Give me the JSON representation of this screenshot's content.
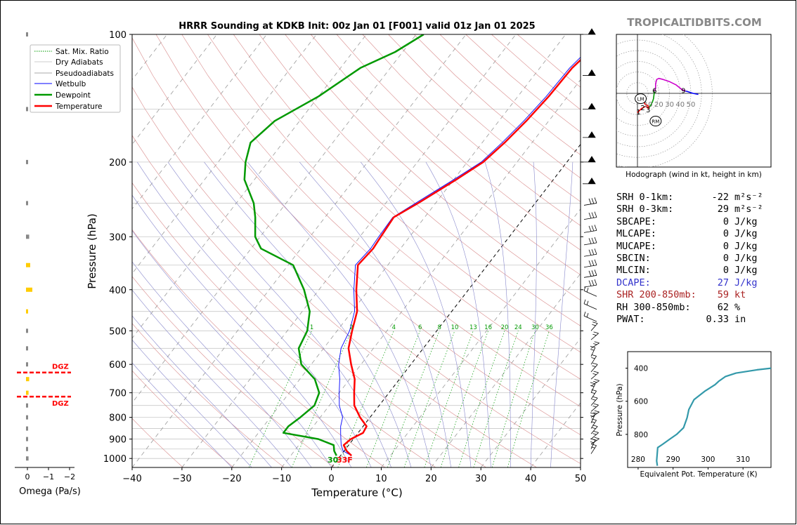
{
  "title": "HRRR Sounding at KDKB Init: 00z Jan 01 [F001] valid 01z Jan 01 2025",
  "watermark": "TROPICALTIDBITS.COM",
  "legend": [
    "Sat. Mix. Ratio",
    "Dry Adiabats",
    "Pseudoadiabats",
    "Wetbulb",
    "Dewpoint",
    "Temperature"
  ],
  "colors": {
    "temperature": "#ff0000",
    "dewpoint": "#009900",
    "wetbulb": "#0000ff",
    "hodo_line": "#cc00cc",
    "theta_e": "#3399aa",
    "dgz": "#ff0000",
    "omega": "#ffcc00"
  },
  "surface_labels": {
    "dewpoint": "30",
    "temperature": "33F"
  },
  "mixing_ratio_labels": [
    "1",
    "2",
    "4",
    "6",
    "8",
    "10",
    "13",
    "16",
    "20",
    "24",
    "30",
    "36"
  ],
  "dgz_label": "DGZ",
  "params": [
    {
      "label": "SRH 0-1km:",
      "value": "-22",
      "unit": "m²s⁻²",
      "color": "#000000"
    },
    {
      "label": "SRH 0-3km:",
      "value": "29",
      "unit": "m²s⁻²",
      "color": "#000000"
    },
    {
      "label": "SBCAPE:",
      "value": "0",
      "unit": "J/kg",
      "color": "#000000"
    },
    {
      "label": "MLCAPE:",
      "value": "0",
      "unit": "J/kg",
      "color": "#000000"
    },
    {
      "label": "MUCAPE:",
      "value": "0",
      "unit": "J/kg",
      "color": "#000000"
    },
    {
      "label": "SBCIN:",
      "value": "0",
      "unit": "J/kg",
      "color": "#000000"
    },
    {
      "label": "MLCIN:",
      "value": "0",
      "unit": "J/kg",
      "color": "#000000"
    },
    {
      "label": "DCAPE:",
      "value": "27",
      "unit": "J/kg",
      "color": "#3333cc"
    },
    {
      "label": "SHR 200-850mb:",
      "value": "59",
      "unit": "kt",
      "color": "#aa2222"
    },
    {
      "label": "RH 300-850mb:",
      "value": "62",
      "unit": "%",
      "color": "#000000"
    },
    {
      "label": "PWAT:",
      "value": "0.33",
      "unit": "in",
      "color": "#000000"
    }
  ],
  "chart_data": [
    {
      "type": "line",
      "id": "skewt",
      "xlabel": "Temperature (°C)",
      "ylabel": "Pressure (hPa)",
      "xlim": [
        -40,
        50
      ],
      "ylim": [
        1050,
        100
      ],
      "x_ticks": [
        -40,
        -30,
        -20,
        -10,
        0,
        10,
        20,
        30,
        40,
        50
      ],
      "y_ticks": [
        100,
        200,
        300,
        400,
        500,
        600,
        700,
        800,
        900,
        1000
      ],
      "y_scale": "log",
      "series": [
        {
          "name": "Temperature",
          "p": [
            985,
            960,
            930,
            900,
            870,
            840,
            800,
            750,
            700,
            650,
            600,
            550,
            500,
            450,
            400,
            350,
            320,
            300,
            270,
            250,
            220,
            200,
            180,
            160,
            140,
            120,
            110,
            100
          ],
          "t": [
            2.2,
            0.5,
            -1,
            -0.5,
            1,
            0.7,
            -2,
            -5,
            -7,
            -9,
            -12,
            -15,
            -17,
            -19,
            -22.5,
            -26,
            -25.5,
            -25.8,
            -26.2,
            -23.5,
            -19.5,
            -16.8,
            -15.5,
            -14.5,
            -13.8,
            -13.5,
            -12.6,
            -11
          ]
        },
        {
          "name": "Dewpoint",
          "p": [
            985,
            960,
            930,
            900,
            870,
            840,
            800,
            750,
            700,
            650,
            600,
            550,
            500,
            450,
            400,
            350,
            320,
            300,
            270,
            250,
            220,
            200,
            180,
            160,
            140,
            120,
            110,
            100
          ],
          "t": [
            -0.8,
            -2,
            -3,
            -7,
            -15,
            -15,
            -14,
            -13,
            -14,
            -17,
            -22,
            -25,
            -26,
            -28.5,
            -33,
            -39,
            -48,
            -51,
            -54,
            -56.5,
            -62,
            -64.5,
            -66.5,
            -65,
            -60,
            -56,
            -51.5,
            -48.5
          ]
        },
        {
          "name": "Wetbulb",
          "p": [
            985,
            960,
            930,
            900,
            870,
            840,
            800,
            750,
            700,
            650,
            600,
            550,
            500,
            450,
            400,
            350,
            320,
            300,
            270,
            250,
            220,
            200,
            180,
            160,
            140,
            120,
            110,
            100
          ],
          "t": [
            2.2,
            -0.2,
            -1.5,
            -2.5,
            -3.5,
            -4.5,
            -5.5,
            -8,
            -10,
            -12,
            -14.5,
            -16.5,
            -17.5,
            -19.5,
            -23,
            -26.5,
            -26,
            -26.2,
            -26.4,
            -24,
            -20,
            -17.2,
            -16,
            -15,
            -14.3,
            -14,
            -13.2,
            -11.6
          ]
        }
      ]
    },
    {
      "type": "line",
      "id": "hodograph",
      "xlabel": "Hodograph (wind in kt, height in km)",
      "ring_labels": [
        "10",
        "20",
        "30",
        "40",
        "50"
      ],
      "height_labels": [
        {
          "km": "1",
          "u": 1,
          "v": -17
        },
        {
          "km": "2",
          "u": 5,
          "v": -13
        },
        {
          "km": "3",
          "u": 10,
          "v": -15
        },
        {
          "km": "6",
          "u": 16,
          "v": 3
        },
        {
          "km": "9",
          "u": 43,
          "v": 3
        }
      ],
      "motion_markers": [
        {
          "label": "LM",
          "u": 3,
          "v": -5
        },
        {
          "label": "RM",
          "u": 17,
          "v": -26
        }
      ],
      "segments": [
        {
          "color": "#ff0000",
          "u": [
            0,
            2,
            4,
            6,
            8,
            10,
            11,
            9,
            7,
            6,
            5,
            4
          ],
          "v": [
            -18,
            -16,
            -14,
            -13,
            -12,
            -14,
            -13,
            -11,
            -10,
            -7,
            -5,
            -3
          ]
        },
        {
          "color": "#009900",
          "u": [
            11,
            12,
            14,
            15,
            15.5,
            16,
            16
          ],
          "v": [
            -13,
            -12,
            -8,
            -5,
            -1,
            2,
            2
          ]
        },
        {
          "color": "#cc00cc",
          "u": [
            16,
            17,
            17,
            18,
            20,
            24,
            30,
            36,
            41,
            45
          ],
          "v": [
            2,
            5,
            9,
            13,
            14,
            13,
            11,
            8,
            4,
            2
          ]
        },
        {
          "color": "#0000ff",
          "u": [
            45,
            46,
            52,
            57
          ],
          "v": [
            2,
            2,
            0,
            -1
          ]
        }
      ]
    },
    {
      "type": "line",
      "id": "theta_e",
      "xlabel": "Equivalent Pot. Temperature (K)",
      "ylabel": "Pressure (hPa)",
      "x_ticks": [
        280,
        290,
        300,
        310
      ],
      "y_ticks": [
        400,
        600,
        800
      ],
      "xlim": [
        277,
        318
      ],
      "ylim": [
        1000,
        300
      ],
      "series": [
        {
          "name": "Equivalent Pot. Temperature",
          "x": [
            285.5,
            285.3,
            285.6,
            287,
            289,
            291,
            293,
            294,
            294.5,
            296,
            299,
            302,
            303,
            305,
            308,
            314,
            318
          ],
          "p": [
            990,
            960,
            880,
            860,
            830,
            800,
            760,
            700,
            650,
            590,
            540,
            500,
            480,
            450,
            430,
            410,
            400
          ]
        }
      ]
    },
    {
      "type": "bar",
      "id": "omega",
      "xlabel": "Omega (Pa/s)",
      "x_ticks": [
        "0",
        "−1",
        "−2"
      ],
      "p": [
        100,
        150,
        200,
        250,
        300,
        350,
        400,
        450,
        500,
        550,
        600,
        650,
        700,
        750,
        800,
        850,
        900,
        950,
        1000
      ],
      "values": [
        0.05,
        0.05,
        0.08,
        0.1,
        0.15,
        0.2,
        0.3,
        0.1,
        0.05,
        0.02,
        0.1,
        0.15,
        0.12,
        0.08,
        0.05,
        0.05,
        0.04,
        0.1,
        0.12
      ],
      "dgz_pressures": [
        627,
        715
      ]
    }
  ]
}
